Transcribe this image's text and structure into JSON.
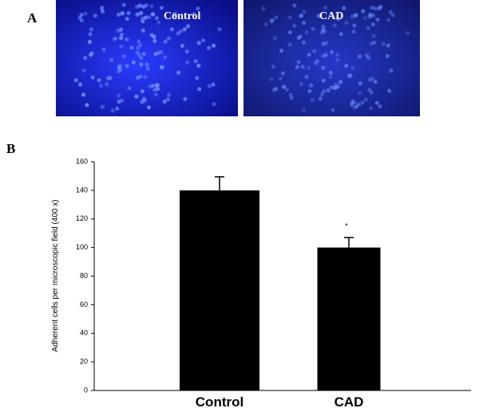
{
  "panel_labels": [
    "A",
    "B"
  ],
  "images": [
    {
      "label": "Control"
    },
    {
      "label": "CAD"
    }
  ],
  "chart_data": {
    "type": "bar",
    "ylabel": "Adherent cells per microscopic field (400 x)",
    "categories": [
      "Control",
      "CAD"
    ],
    "values": [
      140,
      100
    ],
    "errors": [
      9.5,
      7
    ],
    "significance_labels": [
      null,
      "*"
    ],
    "color": "#000000",
    "ylim": [
      0,
      160
    ],
    "yticks": [
      0,
      20,
      40,
      60,
      80,
      100,
      120,
      140,
      160
    ],
    "grid": false
  }
}
